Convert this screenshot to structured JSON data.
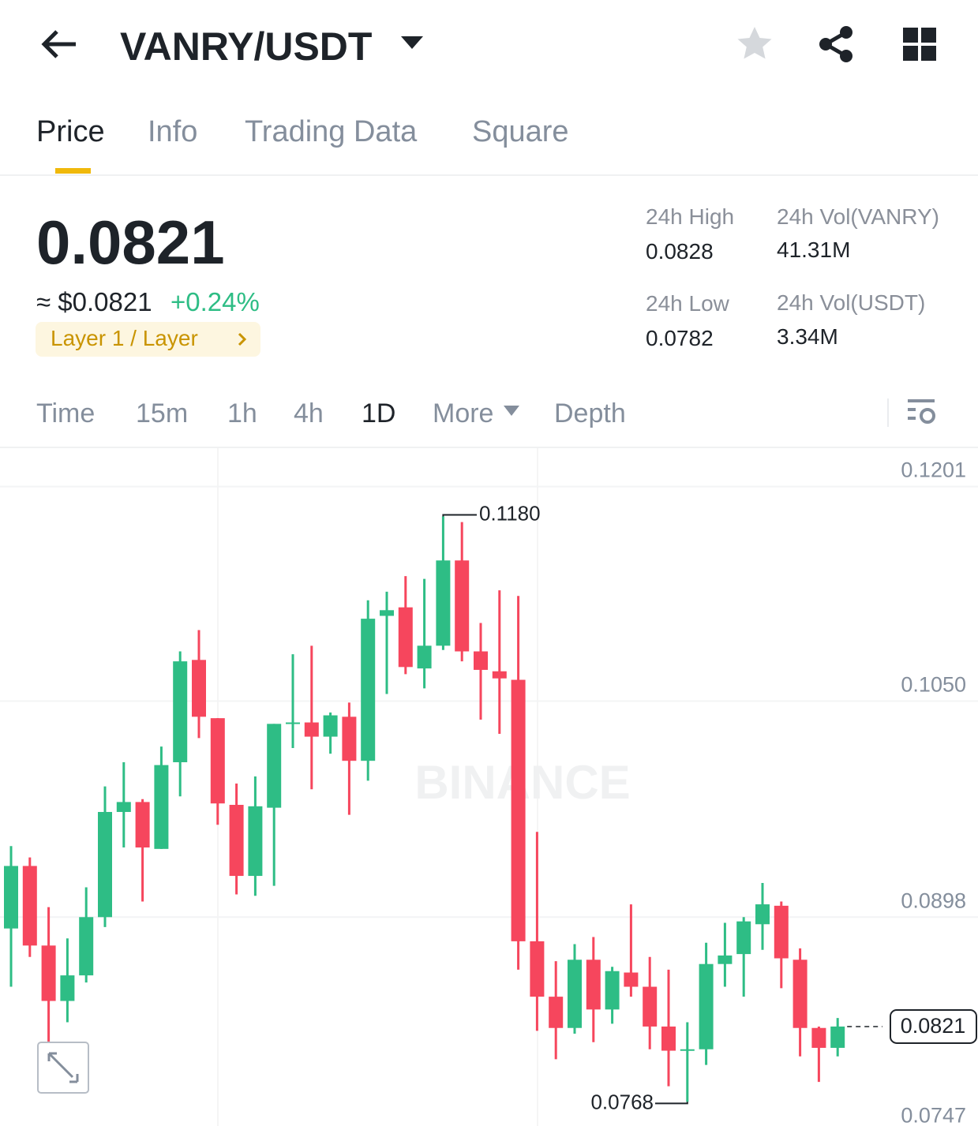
{
  "header": {
    "pair": "VANRY/USDT"
  },
  "tabs": [
    "Price",
    "Info",
    "Trading Data",
    "Square"
  ],
  "summary": {
    "price": "0.0821",
    "usd_price": "≈ $0.0821",
    "change": "+0.24%",
    "tag": "Layer 1 / Layer"
  },
  "stats": [
    {
      "label": "24h High",
      "value": "0.0828"
    },
    {
      "label": "24h Vol(VANRY)",
      "value": "41.31M"
    },
    {
      "label": "24h Low",
      "value": "0.0782"
    },
    {
      "label": "24h Vol(USDT)",
      "value": "3.34M"
    }
  ],
  "intervals": [
    "Time",
    "15m",
    "1h",
    "4h",
    "1D",
    "More",
    "Depth"
  ],
  "watermark": "BINANCE",
  "chart_data": {
    "type": "candlestick",
    "up_color": "#2ebd85",
    "down_color": "#f6465d",
    "open": [
      0.089,
      0.0934,
      0.0878,
      0.0839,
      0.0857,
      0.0898,
      0.0972,
      0.0979,
      0.0946,
      0.1007,
      0.1079,
      0.1038,
      0.0977,
      0.0927,
      0.0975,
      0.1034,
      0.1035,
      0.1025,
      0.1039,
      0.1008,
      0.111,
      0.1116,
      0.1073,
      0.1089,
      0.1149,
      0.1085,
      0.1071,
      0.1065,
      0.0881,
      0.0842,
      0.082,
      0.0868,
      0.0833,
      0.0859,
      0.0849,
      0.0821,
      0.0804,
      0.0805,
      0.0865,
      0.0872,
      0.0893,
      0.0906,
      0.0868,
      0.082,
      0.0806
    ],
    "high": [
      0.0948,
      0.094,
      0.0905,
      0.0883,
      0.0919,
      0.099,
      0.1007,
      0.0981,
      0.1018,
      0.1085,
      0.11,
      0.1038,
      0.0992,
      0.0997,
      0.1034,
      0.1083,
      0.1089,
      0.1042,
      0.1049,
      0.1121,
      0.1127,
      0.1138,
      0.1136,
      0.118,
      0.1176,
      0.1105,
      0.1128,
      0.1124,
      0.0958,
      0.0867,
      0.0879,
      0.0884,
      0.0863,
      0.0907,
      0.087,
      0.0861,
      0.0824,
      0.088,
      0.0894,
      0.0898,
      0.0922,
      0.0909,
      0.0876,
      0.0821,
      0.0827
    ],
    "low": [
      0.0849,
      0.087,
      0.0788,
      0.0824,
      0.0852,
      0.0891,
      0.0947,
      0.0909,
      0.0946,
      0.0983,
      0.1024,
      0.0963,
      0.0914,
      0.0913,
      0.092,
      0.1017,
      0.0988,
      0.1013,
      0.097,
      0.0994,
      0.1055,
      0.1069,
      0.1059,
      0.1086,
      0.1078,
      0.1037,
      0.1027,
      0.0861,
      0.0818,
      0.0798,
      0.0816,
      0.081,
      0.0823,
      0.0842,
      0.0805,
      0.0779,
      0.0768,
      0.0794,
      0.0849,
      0.0842,
      0.0875,
      0.0848,
      0.08,
      0.0782,
      0.08
    ],
    "close": [
      0.0934,
      0.0878,
      0.0839,
      0.0857,
      0.0898,
      0.0972,
      0.0979,
      0.0947,
      0.1005,
      0.1078,
      0.1039,
      0.0978,
      0.0927,
      0.0976,
      0.1034,
      0.1035,
      0.1025,
      0.104,
      0.1008,
      0.1108,
      0.1114,
      0.1074,
      0.1089,
      0.1149,
      0.1085,
      0.1072,
      0.1066,
      0.0881,
      0.0842,
      0.082,
      0.0868,
      0.0833,
      0.086,
      0.0849,
      0.0821,
      0.0804,
      0.0805,
      0.0865,
      0.0871,
      0.0895,
      0.0907,
      0.0869,
      0.082,
      0.0806,
      0.0821
    ],
    "ylim": [
      0.0751,
      0.1228
    ],
    "yticks": [
      0.1201,
      {
        "value": 0.105,
        "label": "0.1050"
      },
      0.0898,
      0.0747
    ],
    "grid": true,
    "annotations": [
      {
        "label": "0.1180",
        "value": 0.118
      },
      {
        "label": "0.0768",
        "value": 0.0768
      }
    ],
    "last_price": {
      "label": "0.0821",
      "value": 0.0821
    }
  }
}
